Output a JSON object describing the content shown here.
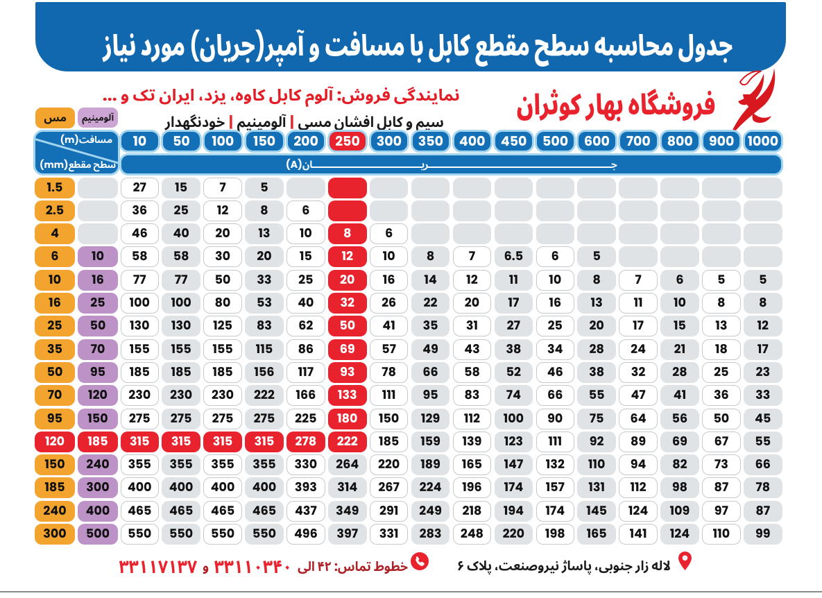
{
  "banner": {
    "title": "جدول محاسبه سطح مقطع کابل با مسافت و آمپر(جریان) مورد نیاز"
  },
  "header": {
    "dealer_line": "نمایندگی فروش: آلوم کابل کاوه، یزد، ایران تک و ...",
    "products": {
      "items": [
        "سیم و کابل افشان مسی",
        "آلومینیم",
        "خودنگهدار"
      ],
      "separator": "|"
    },
    "brand": {
      "name": "فروشگاه بهار کوثران",
      "logo_icon": "calligraphic-bird-swoosh"
    }
  },
  "legend": {
    "copper_label": "مس",
    "aluminum_label": "آلومینیم"
  },
  "colors": {
    "banner_blue": "#1268ae",
    "header_blue": "#1470b6",
    "light_blue_ring": "#a3d5ef",
    "red": "#e8232d",
    "orange": "#f2a42e",
    "lilac": "#bd92c7",
    "lilac_chip": "#cda5d4",
    "gray_cell": "#dfe3e6",
    "white_cell": "#ffffff"
  },
  "chart_data": {
    "type": "table",
    "title": "جدول محاسبه سطح مقطع کابل با مسافت و آمپر(جریان) مورد نیاز",
    "corner_header": {
      "top": "مسافت(m)",
      "bottom": "سطح مقطع(mm)"
    },
    "current_row_label": "جریان(A)",
    "current_row_label_stretched": "جــــــــــــــــــــــــــــــــــــــــــــــــــــــــــــــــریــــــــــــــــــــــــــــــــــــــان(A)",
    "distances_m": [
      10,
      50,
      100,
      150,
      200,
      250,
      300,
      350,
      400,
      450,
      500,
      600,
      700,
      800,
      900,
      1000
    ],
    "highlighted_distance": 250,
    "highlighted_column_index": 5,
    "highlighted_column_last_row": 11,
    "highlighted_row_index": 11,
    "highlighted_row_last_col": 5,
    "column_headers": {
      "copper": "مس",
      "aluminum": "آلومینیم"
    },
    "rows": [
      {
        "cu": "1.5",
        "al": "",
        "amps": [
          "27",
          "15",
          "7",
          "5",
          "",
          "",
          "",
          "",
          "",
          "",
          "",
          "",
          "",
          "",
          "",
          ""
        ]
      },
      {
        "cu": "2.5",
        "al": "",
        "amps": [
          "36",
          "25",
          "12",
          "8",
          "6",
          "",
          "",
          "",
          "",
          "",
          "",
          "",
          "",
          "",
          "",
          ""
        ]
      },
      {
        "cu": "4",
        "al": "",
        "amps": [
          "46",
          "40",
          "20",
          "13",
          "10",
          "8",
          "6",
          "",
          "",
          "",
          "",
          "",
          "",
          "",
          "",
          ""
        ]
      },
      {
        "cu": "6",
        "al": "10",
        "amps": [
          "58",
          "58",
          "30",
          "20",
          "15",
          "12",
          "10",
          "8",
          "7",
          "6.5",
          "6",
          "5",
          "",
          "",
          "",
          ""
        ]
      },
      {
        "cu": "10",
        "al": "16",
        "amps": [
          "77",
          "77",
          "50",
          "33",
          "25",
          "20",
          "16",
          "14",
          "12",
          "11",
          "10",
          "8",
          "7",
          "6",
          "5",
          "5"
        ]
      },
      {
        "cu": "16",
        "al": "25",
        "amps": [
          "100",
          "100",
          "80",
          "53",
          "40",
          "32",
          "26",
          "22",
          "20",
          "17",
          "16",
          "13",
          "11",
          "10",
          "8",
          "8"
        ]
      },
      {
        "cu": "25",
        "al": "50",
        "amps": [
          "130",
          "130",
          "125",
          "83",
          "62",
          "50",
          "41",
          "35",
          "31",
          "27",
          "25",
          "20",
          "17",
          "15",
          "13",
          "12"
        ]
      },
      {
        "cu": "35",
        "al": "70",
        "amps": [
          "155",
          "155",
          "155",
          "115",
          "86",
          "69",
          "57",
          "49",
          "43",
          "38",
          "34",
          "28",
          "24",
          "21",
          "18",
          "17"
        ]
      },
      {
        "cu": "50",
        "al": "95",
        "amps": [
          "185",
          "185",
          "185",
          "156",
          "117",
          "93",
          "78",
          "66",
          "58",
          "52",
          "46",
          "38",
          "32",
          "28",
          "25",
          "23"
        ]
      },
      {
        "cu": "70",
        "al": "120",
        "amps": [
          "230",
          "230",
          "230",
          "222",
          "166",
          "133",
          "111",
          "95",
          "83",
          "74",
          "66",
          "55",
          "47",
          "41",
          "36",
          "33"
        ]
      },
      {
        "cu": "95",
        "al": "150",
        "amps": [
          "275",
          "275",
          "275",
          "275",
          "225",
          "180",
          "150",
          "129",
          "112",
          "100",
          "90",
          "75",
          "64",
          "56",
          "50",
          "45"
        ]
      },
      {
        "cu": "120",
        "al": "185",
        "amps": [
          "315",
          "315",
          "315",
          "315",
          "278",
          "222",
          "185",
          "159",
          "139",
          "123",
          "111",
          "92",
          "89",
          "69",
          "67",
          "55"
        ]
      },
      {
        "cu": "150",
        "al": "240",
        "amps": [
          "355",
          "355",
          "355",
          "355",
          "330",
          "264",
          "220",
          "189",
          "165",
          "147",
          "132",
          "110",
          "94",
          "82",
          "73",
          "66"
        ]
      },
      {
        "cu": "185",
        "al": "300",
        "amps": [
          "400",
          "400",
          "400",
          "400",
          "393",
          "314",
          "267",
          "224",
          "196",
          "174",
          "157",
          "131",
          "112",
          "98",
          "87",
          "78"
        ]
      },
      {
        "cu": "240",
        "al": "400",
        "amps": [
          "465",
          "465",
          "465",
          "465",
          "437",
          "349",
          "291",
          "249",
          "218",
          "194",
          "174",
          "145",
          "124",
          "109",
          "97",
          "87"
        ]
      },
      {
        "cu": "300",
        "al": "500",
        "amps": [
          "550",
          "550",
          "550",
          "550",
          "496",
          "397",
          "331",
          "283",
          "248",
          "220",
          "198",
          "165",
          "141",
          "124",
          "110",
          "99"
        ]
      }
    ]
  },
  "footer": {
    "phone_label": "خطوط تماس: ۴۲ الی",
    "phone_number_1": "۳۳۱۱۰۳۴۰",
    "conjunction": "و",
    "phone_number_2": "۳۳۱۱۷۱۳۷",
    "phone_icon": "phone-in-circle",
    "address": "لاله زار جنوبی، پاساژ نیروصنعت، پلاک ۶",
    "address_icon": "location-pin"
  }
}
